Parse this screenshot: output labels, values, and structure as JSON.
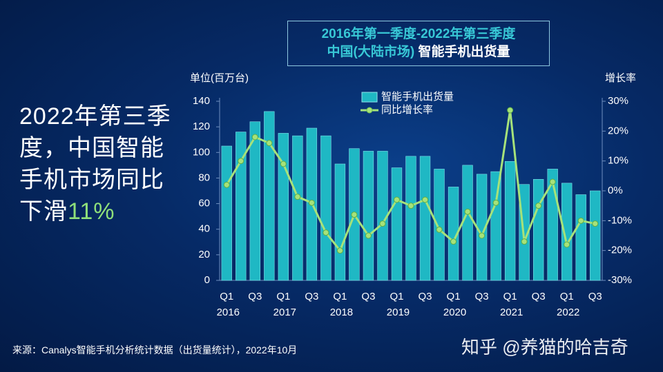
{
  "headline": {
    "text": "2022年第三季度，中国智能手机市场同比下滑",
    "highlight": "11%"
  },
  "source": "来源：Canalys智能手机分析统计数据（出货量统计），2022年10月",
  "watermark": "知乎 @养猫的哈吉奇",
  "chart_data": {
    "type": "bar-line",
    "title": "2016年第一季度-2022年第三季度",
    "subtitle_a": "中国(大陆市场)",
    "subtitle_b": "智能手机出货量",
    "y_label": "单位(百万台)",
    "y2_label": "增长率",
    "categories": [
      "Q1",
      null,
      "Q3",
      null,
      "Q1",
      null,
      "Q3",
      null,
      "Q1",
      null,
      "Q3",
      null,
      "Q1",
      null,
      "Q3",
      null,
      "Q1",
      null,
      "Q3",
      null,
      "Q1",
      null,
      "Q3",
      null,
      "Q1",
      null,
      "Q3"
    ],
    "years": [
      "2016",
      "2017",
      "2018",
      "2019",
      "2020",
      "2021",
      "2022"
    ],
    "series": [
      {
        "name": "智能手机出货量",
        "color": "#1fb8c4",
        "values": [
          105,
          116,
          124,
          132,
          115,
          113,
          119,
          113,
          91,
          103,
          101,
          101,
          88,
          97,
          97,
          87,
          73,
          90,
          83,
          85,
          93,
          75,
          79,
          87,
          76,
          67,
          70
        ]
      },
      {
        "name": "同比增长率",
        "color": "#a6e27a",
        "axis": "y2",
        "values": [
          2,
          10,
          18,
          16,
          9,
          -2,
          -4,
          -14,
          -20,
          -8,
          -15,
          -11,
          -3,
          -5,
          -3,
          -13,
          -17,
          -7,
          -15,
          -4,
          27,
          -17,
          -5,
          3,
          -18,
          -10,
          -11
        ]
      }
    ],
    "ylim": [
      0,
      140
    ],
    "yticks": [
      0,
      20,
      40,
      60,
      80,
      100,
      120,
      140
    ],
    "y2lim": [
      -30,
      30
    ],
    "y2ticks": [
      {
        "value": -30,
        "label": "-30%"
      },
      {
        "value": -20,
        "label": "-20%"
      },
      {
        "value": -10,
        "label": "-10%"
      },
      {
        "value": 0,
        "label": "0%"
      },
      {
        "value": 10,
        "label": "10%"
      },
      {
        "value": 20,
        "label": "20%"
      },
      {
        "value": 30,
        "label": "30%"
      }
    ]
  }
}
